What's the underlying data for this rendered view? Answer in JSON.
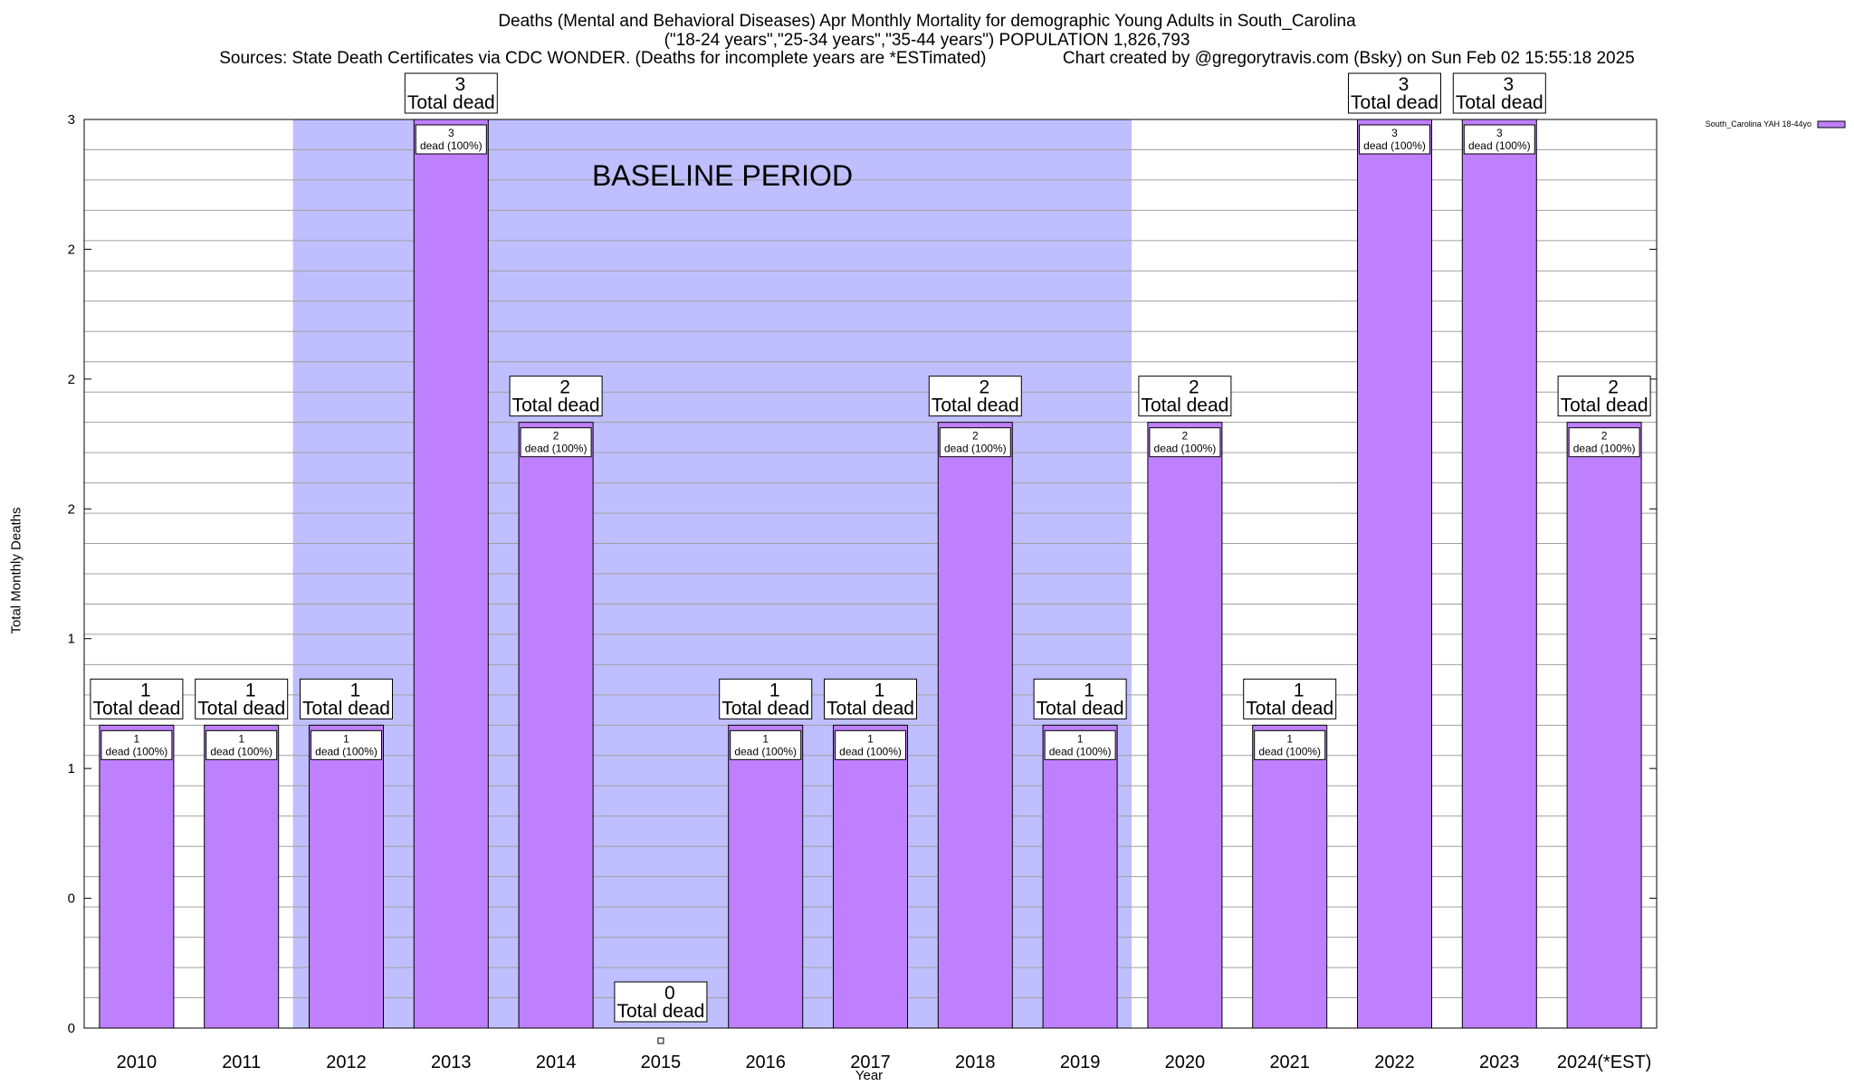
{
  "header": {
    "title_line1": "Deaths (Mental and Behavioral Diseases) Apr Monthly Mortality for demographic Young Adults in South_Carolina",
    "title_line2": "(\"18-24 years\",\"25-34 years\",\"35-44 years\") POPULATION 1,826,793",
    "title_line3": "Sources: State Death Certificates via CDC WONDER. (Deaths for incomplete years are *ESTimated)                Chart created by @gregorytravis.com (Bsky) on Sun Feb 02 15:55:18 2025"
  },
  "chart_data": {
    "type": "bar",
    "title": "Deaths (Mental and Behavioral Diseases) Apr Monthly Mortality for demographic Young Adults in South_Carolina",
    "xlabel": "Year",
    "ylabel": "Total Monthly Deaths",
    "categories": [
      "2010",
      "2011",
      "2012",
      "2013",
      "2014",
      "2015",
      "2016",
      "2017",
      "2018",
      "2019",
      "2020",
      "2021",
      "2022",
      "2023",
      "2024(*EST)"
    ],
    "series": [
      {
        "name": "South_Carolina YAH 18-44yo",
        "values": [
          1,
          1,
          1,
          3,
          2,
          0,
          1,
          1,
          2,
          1,
          2,
          1,
          3,
          3,
          2
        ]
      }
    ],
    "ylim": [
      0,
      3
    ],
    "ytick_labels": [
      "0",
      "0",
      "1",
      "1",
      "2",
      "2",
      "2",
      "3"
    ],
    "total_label": "Total dead",
    "inner_label_suffix": "dead (100%)",
    "annotation": "BASELINE PERIOD",
    "baseline_period": [
      "2012",
      "2019"
    ],
    "grid": true,
    "legend_position": "top-right",
    "colors": {
      "bar": "#bf80ff",
      "baseline": "#bfbfff"
    }
  }
}
